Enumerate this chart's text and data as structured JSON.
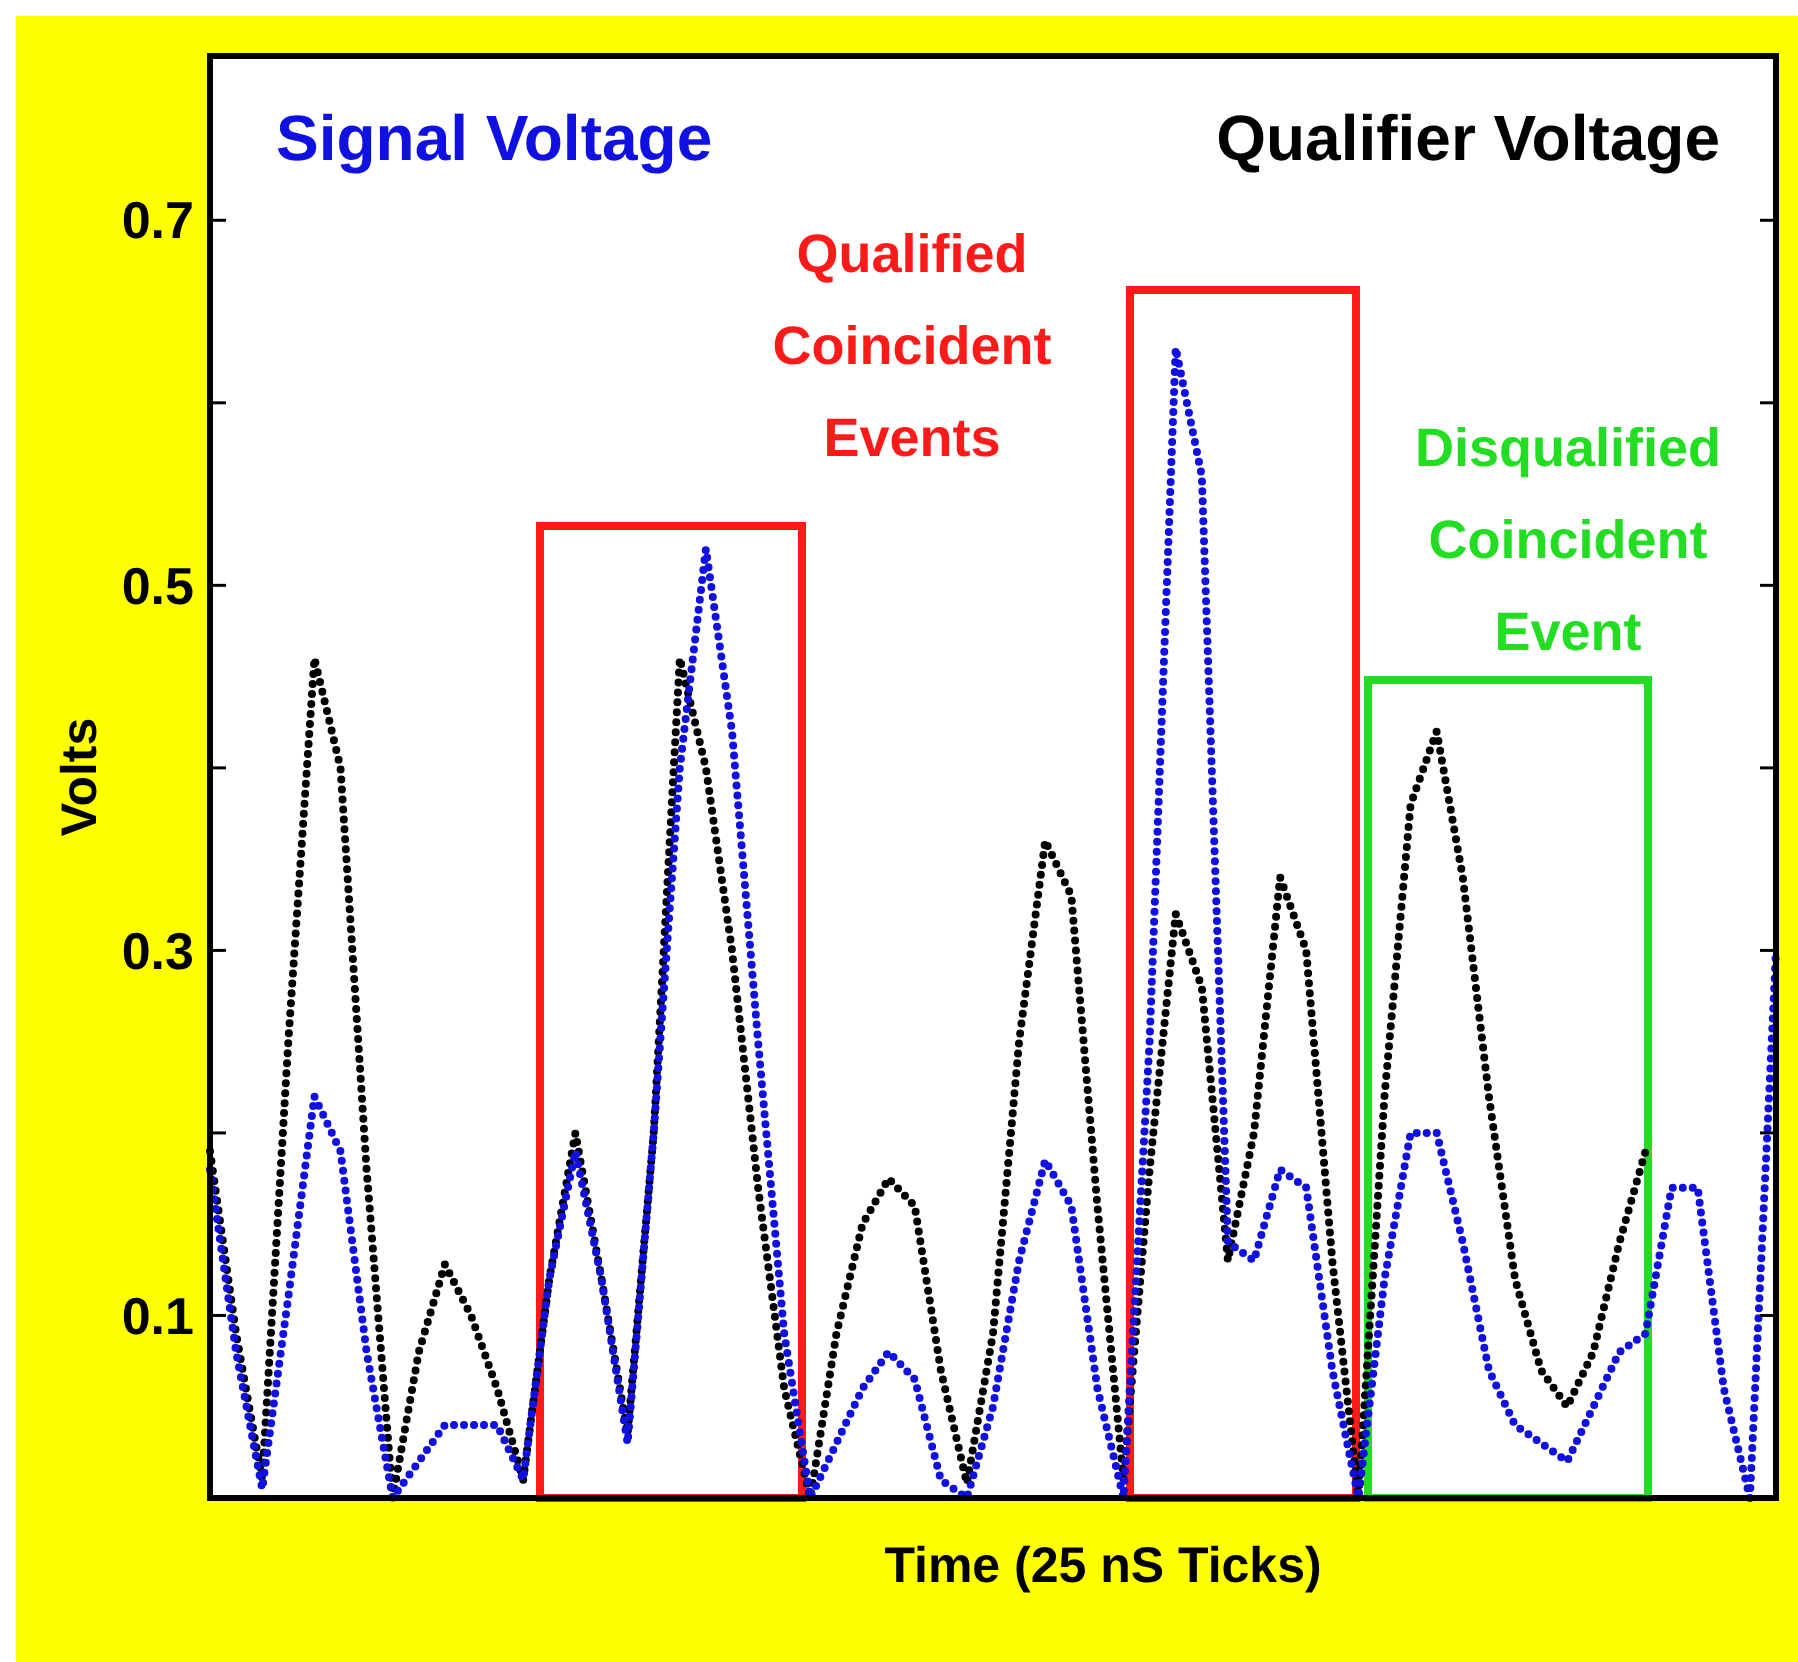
{
  "chart_data": {
    "type": "line",
    "xlabel": "Time (25 nS Ticks)",
    "ylabel": "Volts",
    "categories": [
      null,
      null,
      null,
      null,
      null,
      null,
      null,
      null,
      null,
      null,
      null,
      null,
      null,
      null,
      null,
      null,
      null,
      null,
      null,
      null,
      null,
      null,
      null,
      null,
      null,
      null,
      null,
      null,
      null,
      null,
      null,
      null,
      null,
      null,
      null,
      null,
      null,
      null,
      null,
      null,
      null,
      null,
      null,
      null,
      null,
      null,
      null,
      null,
      null,
      null,
      null,
      null,
      null,
      null,
      null,
      null,
      null,
      null,
      null,
      null,
      null
    ],
    "series": [
      {
        "name": "Qualifier Voltage",
        "color": "#000000",
        "values": [
          0.19,
          0.09,
          0.01,
          0.25,
          0.46,
          0.4,
          0.18,
          0.0,
          0.08,
          0.128,
          0.1,
          0.06,
          0.01,
          0.12,
          0.2,
          0.12,
          0.035,
          0.2,
          0.46,
          0.4,
          0.3,
          0.17,
          0.06,
          0.0,
          0.09,
          0.15,
          0.175,
          0.16,
          0.07,
          0.008,
          0.09,
          0.25,
          0.36,
          0.33,
          0.16,
          0.01,
          0.18,
          0.32,
          0.28,
          0.13,
          0.2,
          0.34,
          0.3,
          0.13,
          0.0,
          0.22,
          0.38,
          0.42,
          0.34,
          0.22,
          0.12,
          0.07,
          0.05,
          0.08,
          0.14,
          0.19,
          null,
          null,
          null,
          null,
          null
        ]
      },
      {
        "name": "Signal Voltage",
        "color": "#1010e0",
        "values": [
          0.18,
          0.08,
          0.005,
          0.11,
          0.22,
          0.19,
          0.08,
          0.0,
          0.02,
          0.04,
          0.04,
          0.04,
          0.01,
          0.12,
          0.19,
          0.12,
          0.03,
          0.2,
          0.4,
          0.52,
          0.42,
          0.25,
          0.09,
          0.0,
          0.03,
          0.06,
          0.08,
          0.065,
          0.01,
          0.0,
          0.05,
          0.13,
          0.185,
          0.16,
          0.06,
          0.0,
          0.25,
          0.63,
          0.56,
          0.14,
          0.13,
          0.18,
          0.17,
          0.07,
          0.0,
          0.12,
          0.2,
          0.2,
          0.14,
          0.07,
          0.04,
          0.03,
          0.02,
          0.05,
          0.08,
          0.09,
          0.17,
          0.17,
          0.06,
          0.0,
          0.3
        ]
      }
    ],
    "ylim": [
      0,
      0.79
    ],
    "yticks": [
      0.1,
      {
        "value": 0.2,
        "label": null
      },
      0.3,
      {
        "value": 0.4,
        "label": null
      },
      0.5,
      {
        "value": 0.6,
        "label": null
      },
      0.7
    ],
    "tick_labels": "y",
    "grid": false,
    "legend": "top",
    "line_style": "dotted",
    "annotations": [
      "Qualified Coincident Events",
      "Disqualified Coincident Event"
    ]
  }
}
